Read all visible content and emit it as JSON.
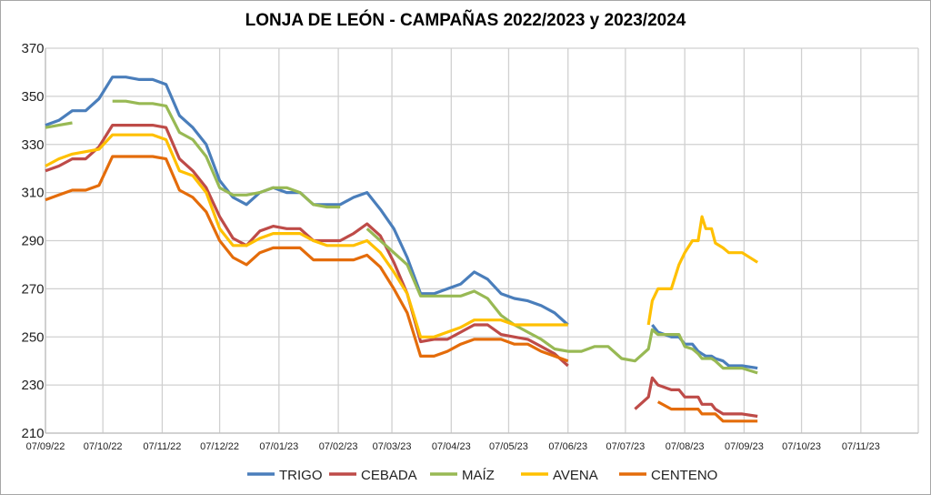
{
  "chart_data": {
    "type": "line",
    "title": "LONJA DE LEÓN - CAMPAÑAS 2022/2023 y 2023/2024",
    "xlabel": "",
    "ylabel": "",
    "ylim": [
      210,
      370
    ],
    "yticks": [
      210,
      230,
      250,
      270,
      290,
      310,
      330,
      350,
      370
    ],
    "xlim": [
      "2022-09-07",
      "2023-12-07"
    ],
    "xtick_labels": [
      "07/09/22",
      "07/10/22",
      "07/11/22",
      "07/12/22",
      "07/01/23",
      "07/02/23",
      "07/03/23",
      "07/04/23",
      "07/05/23",
      "07/06/23",
      "07/07/23",
      "07/08/23",
      "07/09/23",
      "07/10/23",
      "07/11/23"
    ],
    "xtick_dates": [
      "2022-09-07",
      "2022-10-07",
      "2022-11-07",
      "2022-12-07",
      "2023-01-07",
      "2023-02-07",
      "2023-03-07",
      "2023-04-07",
      "2023-05-07",
      "2023-06-07",
      "2023-07-07",
      "2023-08-07",
      "2023-09-07",
      "2023-10-07",
      "2023-11-07"
    ],
    "grid": true,
    "legend_placement": "bottom",
    "dates": [
      "2022-09-07",
      "2022-09-14",
      "2022-09-21",
      "2022-09-28",
      "2022-10-05",
      "2022-10-12",
      "2022-10-19",
      "2022-10-26",
      "2022-11-02",
      "2022-11-09",
      "2022-11-16",
      "2022-11-23",
      "2022-11-30",
      "2022-12-07",
      "2022-12-14",
      "2022-12-21",
      "2022-12-28",
      "2023-01-04",
      "2023-01-11",
      "2023-01-18",
      "2023-01-25",
      "2023-02-01",
      "2023-02-08",
      "2023-02-15",
      "2023-02-22",
      "2023-03-01",
      "2023-03-08",
      "2023-03-15",
      "2023-03-22",
      "2023-03-29",
      "2023-04-05",
      "2023-04-12",
      "2023-04-19",
      "2023-04-26",
      "2023-05-03",
      "2023-05-10",
      "2023-05-17",
      "2023-05-24",
      "2023-05-31",
      "2023-06-07",
      "2023-06-14",
      "2023-06-21",
      "2023-06-28",
      "2023-07-05",
      "2023-07-12",
      "2023-07-19",
      "2023-07-21",
      "2023-07-24",
      "2023-07-31",
      "2023-08-04",
      "2023-08-07",
      "2023-08-11",
      "2023-08-14",
      "2023-08-16",
      "2023-08-18",
      "2023-08-21",
      "2023-08-23",
      "2023-08-27",
      "2023-08-30",
      "2023-09-06",
      "2023-09-14"
    ],
    "series": [
      {
        "name": "TRIGO",
        "color": "#4a7ebb",
        "values": [
          338,
          340,
          344,
          344,
          349,
          358,
          358,
          357,
          357,
          355,
          342,
          337,
          330,
          315,
          308,
          305,
          310,
          312,
          310,
          310,
          305,
          305,
          305,
          308,
          310,
          303,
          295,
          283,
          268,
          268,
          270,
          272,
          277,
          274,
          268,
          266,
          265,
          263,
          260,
          255,
          null,
          null,
          null,
          null,
          null,
          null,
          255,
          252,
          250,
          250,
          247,
          247,
          244,
          243,
          242,
          242,
          241,
          240,
          238,
          238,
          237
        ]
      },
      {
        "name": "CEBADA",
        "color": "#be4b48",
        "values": [
          319,
          321,
          324,
          324,
          329,
          338,
          338,
          338,
          338,
          337,
          324,
          319,
          312,
          300,
          291,
          288,
          294,
          296,
          295,
          295,
          290,
          290,
          290,
          293,
          297,
          292,
          281,
          268,
          248,
          249,
          249,
          252,
          255,
          255,
          251,
          250,
          249,
          246,
          243,
          238,
          null,
          null,
          null,
          null,
          220,
          225,
          233,
          230,
          228,
          228,
          225,
          225,
          225,
          222,
          222,
          222,
          220,
          218,
          218,
          218,
          217
        ]
      },
      {
        "name": "MAÍZ",
        "color": "#98b954",
        "values": [
          337,
          338,
          339,
          null,
          null,
          348,
          348,
          347,
          347,
          346,
          335,
          332,
          325,
          312,
          309,
          309,
          310,
          312,
          312,
          310,
          305,
          304,
          304,
          null,
          295,
          290,
          285,
          280,
          267,
          267,
          267,
          267,
          269,
          266,
          259,
          255,
          252,
          249,
          245,
          244,
          244,
          246,
          246,
          241,
          240,
          245,
          253,
          251,
          251,
          251,
          246,
          245,
          243,
          241,
          241,
          241,
          240,
          237,
          237,
          237,
          235
        ]
      },
      {
        "name": "AVENA",
        "color": "#ffc000",
        "values": [
          321,
          324,
          326,
          327,
          328,
          334,
          334,
          334,
          334,
          332,
          319,
          317,
          310,
          295,
          288,
          288,
          291,
          293,
          293,
          293,
          290,
          288,
          288,
          288,
          290,
          285,
          277,
          268,
          250,
          250,
          252,
          254,
          257,
          257,
          257,
          255,
          255,
          255,
          255,
          255,
          null,
          null,
          null,
          null,
          null,
          255,
          265,
          270,
          270,
          280,
          285,
          290,
          290,
          300,
          295,
          295,
          289,
          287,
          285,
          285,
          281
        ]
      },
      {
        "name": "CENTENO",
        "color": "#e46c0a",
        "values": [
          307,
          309,
          311,
          311,
          313,
          325,
          325,
          325,
          325,
          324,
          311,
          308,
          302,
          290,
          283,
          280,
          285,
          287,
          287,
          287,
          282,
          282,
          282,
          282,
          284,
          279,
          270,
          260,
          242,
          242,
          244,
          247,
          249,
          249,
          249,
          247,
          247,
          244,
          242,
          240,
          null,
          null,
          null,
          null,
          null,
          null,
          null,
          223,
          220,
          220,
          220,
          220,
          220,
          218,
          218,
          218,
          218,
          215,
          215,
          215,
          215
        ]
      }
    ]
  }
}
